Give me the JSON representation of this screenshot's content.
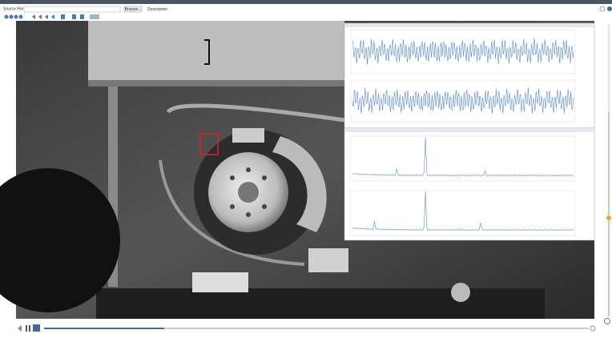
{
  "toolbar": {
    "source_label": "Source File",
    "browse": "Browse...",
    "description": "Description"
  }
}
